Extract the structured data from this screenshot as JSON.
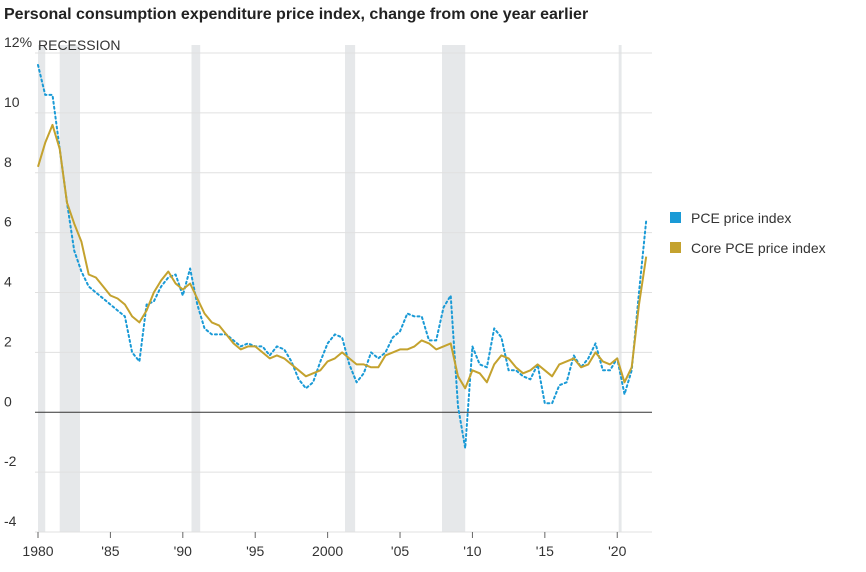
{
  "chart_data": {
    "type": "line",
    "title": "Personal consumption expenditure price index, change from one year earlier",
    "recession_label": "RECESSION",
    "recessions": [
      [
        1980.0,
        1980.5
      ],
      [
        1981.5,
        1982.9
      ],
      [
        1990.6,
        1991.2
      ],
      [
        2001.2,
        2001.9
      ],
      [
        2007.9,
        2009.5
      ],
      [
        2020.1,
        2020.3
      ]
    ],
    "x": [
      1980,
      1980.5,
      1981,
      1981.5,
      1982,
      1982.5,
      1983,
      1983.5,
      1984,
      1984.5,
      1985,
      1985.5,
      1986,
      1986.5,
      1987,
      1987.5,
      1988,
      1988.5,
      1989,
      1989.5,
      1990,
      1990.5,
      1991,
      1991.5,
      1992,
      1992.5,
      1993,
      1993.5,
      1994,
      1994.5,
      1995,
      1995.5,
      1996,
      1996.5,
      1997,
      1997.5,
      1998,
      1998.5,
      1999,
      1999.5,
      2000,
      2000.5,
      2001,
      2001.5,
      2002,
      2002.5,
      2003,
      2003.5,
      2004,
      2004.5,
      2005,
      2005.5,
      2006,
      2006.5,
      2007,
      2007.5,
      2008,
      2008.5,
      2009,
      2009.5,
      2010,
      2010.5,
      2011,
      2011.5,
      2012,
      2012.5,
      2013,
      2013.5,
      2014,
      2014.5,
      2015,
      2015.5,
      2016,
      2016.5,
      2017,
      2017.5,
      2018,
      2018.5,
      2019,
      2019.5,
      2020,
      2020.5,
      2021,
      2021.5,
      2022
    ],
    "series": [
      {
        "name": "PCE price index",
        "color": "#1a9ad6",
        "dotted": true,
        "values": [
          11.6,
          10.6,
          10.6,
          8.8,
          7.0,
          5.4,
          4.7,
          4.2,
          4.0,
          3.8,
          3.6,
          3.4,
          3.2,
          2.0,
          1.7,
          3.6,
          3.7,
          4.2,
          4.5,
          4.6,
          3.9,
          4.8,
          3.6,
          2.8,
          2.6,
          2.6,
          2.6,
          2.4,
          2.2,
          2.3,
          2.2,
          2.2,
          1.9,
          2.2,
          2.1,
          1.7,
          1.1,
          0.8,
          1.0,
          1.7,
          2.3,
          2.6,
          2.5,
          1.6,
          1.0,
          1.3,
          2.0,
          1.8,
          2.0,
          2.5,
          2.7,
          3.3,
          3.2,
          3.2,
          2.4,
          2.4,
          3.5,
          3.9,
          0.2,
          -1.2,
          2.2,
          1.6,
          1.5,
          2.8,
          2.5,
          1.4,
          1.4,
          1.2,
          1.1,
          1.6,
          0.3,
          0.3,
          0.9,
          1.0,
          1.9,
          1.5,
          1.8,
          2.3,
          1.4,
          1.4,
          1.8,
          0.6,
          1.4,
          4.0,
          6.4
        ]
      },
      {
        "name": "Core PCE price index",
        "color": "#c4a22e",
        "dotted": false,
        "values": [
          8.2,
          9.0,
          9.6,
          8.8,
          7.0,
          6.3,
          5.7,
          4.6,
          4.5,
          4.2,
          3.9,
          3.8,
          3.6,
          3.2,
          3.0,
          3.4,
          4.0,
          4.4,
          4.7,
          4.3,
          4.1,
          4.3,
          3.8,
          3.3,
          3.0,
          2.9,
          2.6,
          2.3,
          2.1,
          2.2,
          2.2,
          2.0,
          1.8,
          1.9,
          1.8,
          1.6,
          1.4,
          1.2,
          1.3,
          1.4,
          1.7,
          1.8,
          2.0,
          1.8,
          1.6,
          1.6,
          1.5,
          1.5,
          1.9,
          2.0,
          2.1,
          2.1,
          2.2,
          2.4,
          2.3,
          2.1,
          2.2,
          2.3,
          1.2,
          0.8,
          1.4,
          1.3,
          1.0,
          1.6,
          1.9,
          1.8,
          1.5,
          1.3,
          1.4,
          1.6,
          1.4,
          1.2,
          1.6,
          1.7,
          1.8,
          1.5,
          1.6,
          2.0,
          1.7,
          1.6,
          1.8,
          1.0,
          1.5,
          3.6,
          5.2
        ]
      }
    ],
    "xlim": [
      1980,
      2022.4
    ],
    "xticks": [
      1980,
      {
        "value": 1985,
        "label": "'85"
      },
      {
        "value": 1990,
        "label": "'90"
      },
      {
        "value": 1995,
        "label": "'95"
      },
      2000,
      {
        "value": 2005,
        "label": "'05"
      },
      {
        "value": 2010,
        "label": "'10"
      },
      {
        "value": 2015,
        "label": "'15"
      },
      {
        "value": 2020,
        "label": "'20"
      }
    ],
    "ylim": [
      -4,
      12
    ],
    "yticks": [
      -4,
      -2,
      0,
      2,
      4,
      6,
      8,
      10,
      {
        "value": 12,
        "label": "12%"
      }
    ],
    "grid": true,
    "legend": "right"
  }
}
